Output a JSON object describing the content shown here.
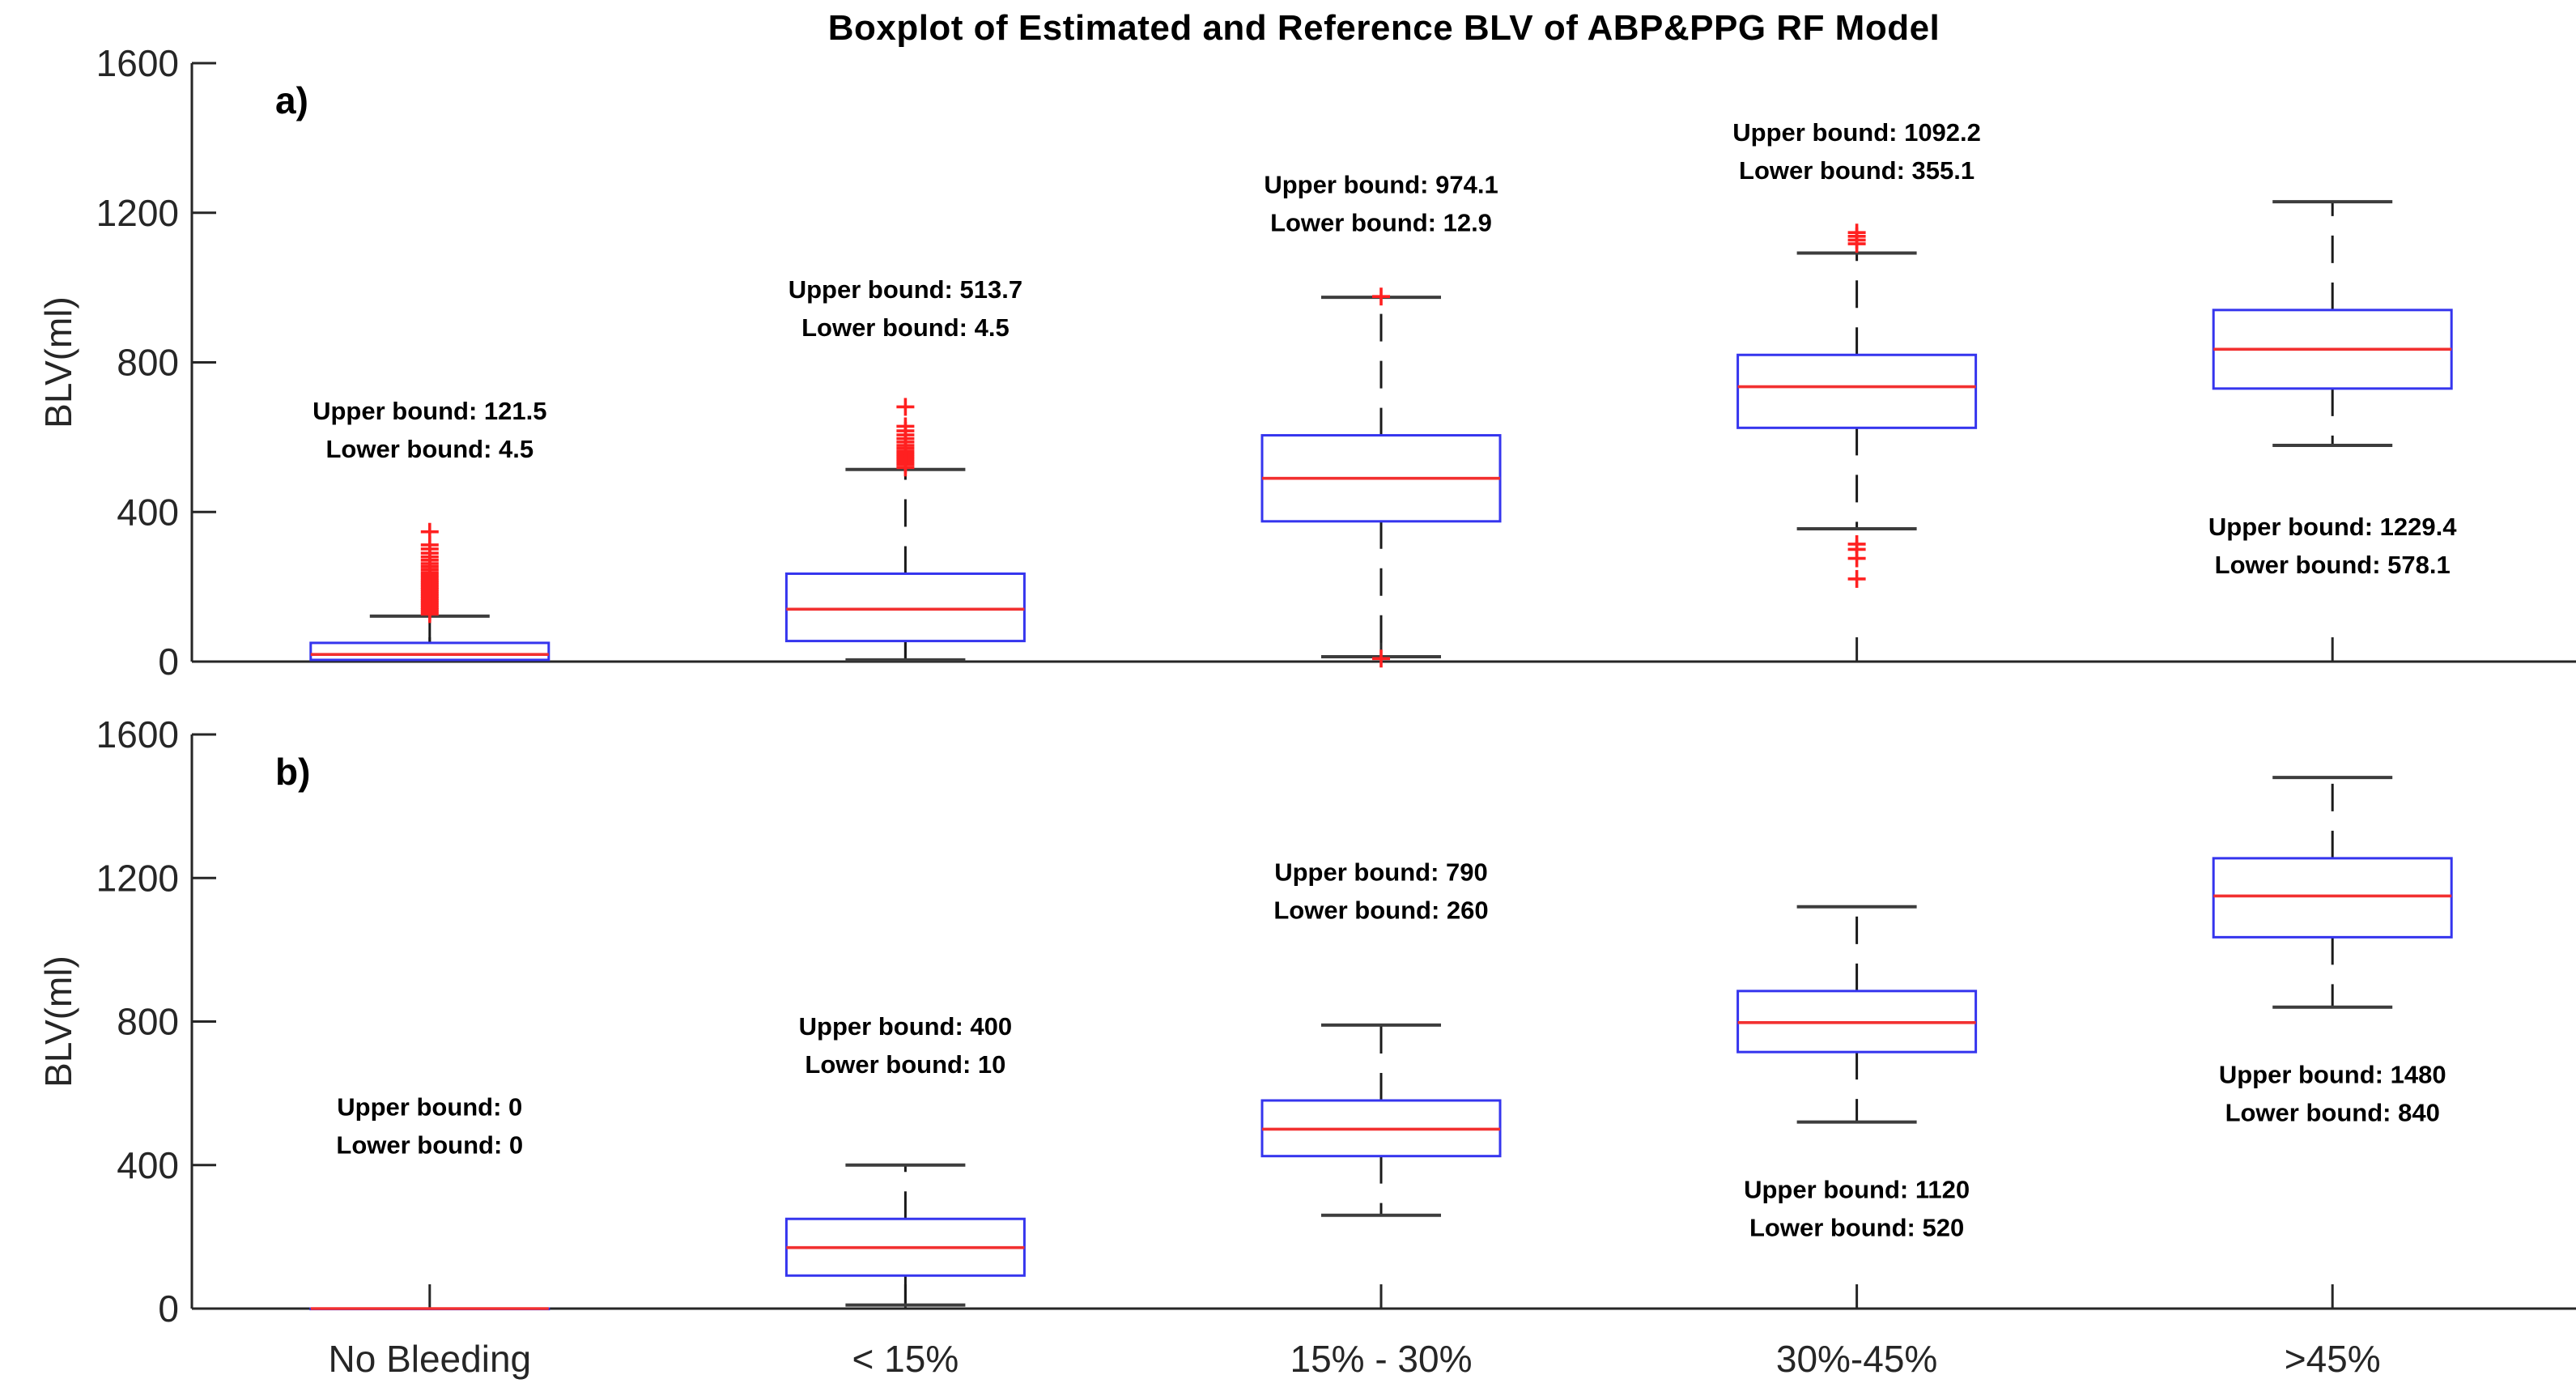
{
  "title": "Boxplot of Estimated and Reference BLV of ABP&PPG RF Model",
  "colors": {
    "box": "#3535ee",
    "median": "#f23030",
    "outlier": "#ff2020",
    "whisker": "#1a1a1a",
    "cap": "#3d3d3d",
    "axis": "#262626",
    "tick_label": "#262626",
    "annotation": "#000000"
  },
  "chart_data": [
    {
      "type": "boxplot",
      "panel_label": "a)",
      "ylabel": "BLV(ml)",
      "ylim": [
        0,
        1600
      ],
      "yticks": [
        0,
        400,
        800,
        1200,
        1600
      ],
      "grid": false,
      "show_x_labels": false,
      "categories": [
        "No Bleeding",
        "< 15%",
        "15% - 30%",
        "30%-45%",
        ">45%"
      ],
      "boxes": [
        {
          "category": "No Bleeding",
          "whisker_low": 4.5,
          "q1": 4.5,
          "median": 19,
          "q3": 50,
          "whisker_high": 121.5,
          "outliers": [
            127,
            133,
            139,
            145,
            151,
            157,
            163,
            169,
            175,
            181,
            187,
            193,
            199,
            205,
            211,
            217,
            224,
            231,
            238,
            246,
            254,
            262,
            271,
            280,
            290,
            301,
            312,
            347
          ],
          "upper_label": "Upper bound: 121.5",
          "lower_label": "Lower bound: 4.5",
          "annotation_y": 630
        },
        {
          "category": "< 15%",
          "whisker_low": 4.5,
          "q1": 55,
          "median": 140,
          "q3": 235,
          "whisker_high": 513.7,
          "outliers": [
            519,
            527,
            534,
            541,
            548,
            555,
            562,
            570,
            578,
            587,
            596,
            606,
            617,
            629,
            681
          ],
          "upper_label": "Upper bound: 513.7",
          "lower_label": "Lower bound: 4.5",
          "annotation_y": 955
        },
        {
          "category": "15% - 30%",
          "whisker_low": 12.9,
          "q1": 375,
          "median": 490,
          "q3": 605,
          "whisker_high": 974.1,
          "outliers": [
            976,
            8
          ],
          "upper_label": "Upper bound: 974.1",
          "lower_label": "Lower bound: 12.9",
          "annotation_y": 1235
        },
        {
          "category": "30%-45%",
          "whisker_low": 355.1,
          "q1": 625,
          "median": 735,
          "q3": 820,
          "whisker_high": 1092.2,
          "outliers": [
            1147,
            1137,
            1127,
            1117,
            314,
            300,
            276,
            221
          ],
          "upper_label": "Upper bound: 1092.2",
          "lower_label": "Lower bound: 355.1",
          "annotation_y": 1375
        },
        {
          "category": ">45%",
          "whisker_low": 578.1,
          "q1": 730,
          "median": 835,
          "q3": 940,
          "whisker_high": 1229.4,
          "outliers": [],
          "upper_label": "Upper bound: 1229.4",
          "lower_label": "Lower bound: 578.1",
          "annotation_y": 320
        }
      ]
    },
    {
      "type": "boxplot",
      "panel_label": "b)",
      "ylabel": "BLV(ml)",
      "ylim": [
        0,
        1600
      ],
      "yticks": [
        0,
        400,
        800,
        1200,
        1600
      ],
      "grid": false,
      "show_x_labels": true,
      "categories": [
        "No Bleeding",
        "< 15%",
        "15% - 30%",
        "30%-45%",
        ">45%"
      ],
      "boxes": [
        {
          "category": "No Bleeding",
          "whisker_low": 0,
          "q1": 0,
          "median": 0,
          "q3": 0,
          "whisker_high": 0,
          "outliers": [],
          "upper_label": "Upper bound: 0",
          "lower_label": "Lower bound: 0",
          "annotation_y": 520
        },
        {
          "category": "< 15%",
          "whisker_low": 10,
          "q1": 92,
          "median": 170,
          "q3": 250,
          "whisker_high": 400,
          "outliers": [],
          "upper_label": "Upper bound: 400",
          "lower_label": "Lower bound: 10",
          "annotation_y": 745
        },
        {
          "category": "15% - 30%",
          "whisker_low": 260,
          "q1": 425,
          "median": 500,
          "q3": 580,
          "whisker_high": 790,
          "outliers": [],
          "upper_label": "Upper bound: 790",
          "lower_label": "Lower bound: 260",
          "annotation_y": 1175
        },
        {
          "category": "30%-45%",
          "whisker_low": 520,
          "q1": 715,
          "median": 797,
          "q3": 885,
          "whisker_high": 1120,
          "outliers": [],
          "upper_label": "Upper bound: 1120",
          "lower_label": "Lower bound: 520",
          "annotation_y": 290
        },
        {
          "category": ">45%",
          "whisker_low": 840,
          "q1": 1035,
          "median": 1150,
          "q3": 1255,
          "whisker_high": 1480,
          "outliers": [],
          "upper_label": "Upper bound: 1480",
          "lower_label": "Lower bound: 840",
          "annotation_y": 610
        }
      ]
    }
  ]
}
